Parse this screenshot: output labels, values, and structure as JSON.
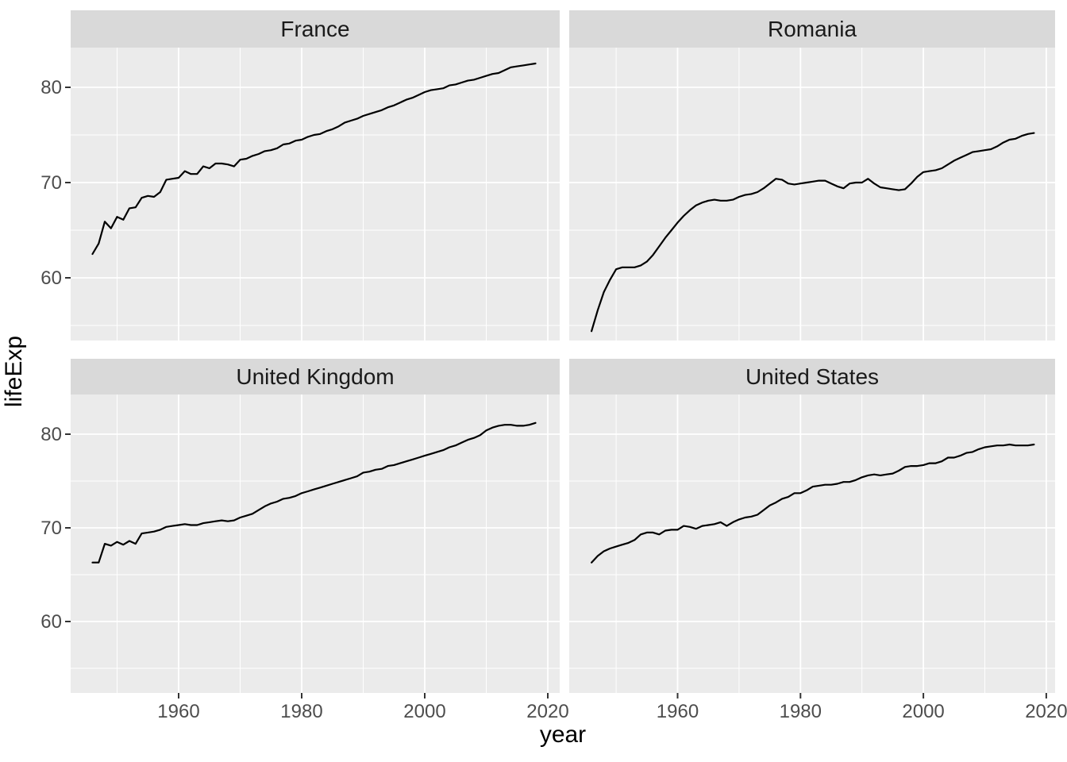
{
  "figure": {
    "x_axis_title": "year",
    "y_axis_title": "lifeExp"
  },
  "chart_data": {
    "type": "line",
    "title": "",
    "xlabel": "year",
    "ylabel": "lifeExp",
    "facet_layout": "2x2 grid, shared axes",
    "x_range": [
      1946,
      2018
    ],
    "x_axis_limits": [
      1942.4,
      2021.6
    ],
    "y_axis_limits": [
      53.0,
      84.2
    ],
    "grid": "white major and minor gridlines on grey panel",
    "legend": "none",
    "x_ticks": [
      1960,
      1980,
      2000,
      2020
    ],
    "x_tick_labels": [
      "1960",
      "1980",
      "2000",
      "2020"
    ],
    "x_minor_ticks": [
      1950,
      1970,
      1990,
      2010
    ],
    "y_ticks": [
      60,
      70,
      80
    ],
    "y_tick_labels": [
      "60",
      "70",
      "80"
    ],
    "y_minor_ticks": [
      55,
      65,
      75
    ],
    "colors": {
      "panel_background": "#ebebeb",
      "strip_background": "#d9d9d9",
      "gridline": "#ffffff",
      "line": "#000000",
      "tick_mark": "#333333",
      "tick_text": "#4d4d4d",
      "strip_text": "#1a1a1a",
      "figure_background": "#ffffff"
    },
    "year_start": 1946,
    "year_step": 1,
    "facets": [
      {
        "title": "France",
        "col": 0,
        "row": 0,
        "values": [
          62.5,
          63.6,
          65.9,
          65.2,
          66.4,
          66.1,
          67.3,
          67.4,
          68.4,
          68.6,
          68.5,
          69.0,
          70.3,
          70.4,
          70.5,
          71.2,
          70.9,
          70.9,
          71.7,
          71.5,
          72.0,
          72.0,
          71.9,
          71.7,
          72.4,
          72.5,
          72.8,
          73.0,
          73.3,
          73.4,
          73.6,
          74.0,
          74.1,
          74.4,
          74.5,
          74.8,
          75.0,
          75.1,
          75.4,
          75.6,
          75.9,
          76.3,
          76.5,
          76.7,
          77.0,
          77.2,
          77.4,
          77.6,
          77.9,
          78.1,
          78.4,
          78.7,
          78.9,
          79.2,
          79.5,
          79.7,
          79.8,
          79.9,
          80.2,
          80.3,
          80.5,
          80.7,
          80.8,
          81.0,
          81.2,
          81.4,
          81.5,
          81.8,
          82.1,
          82.2,
          82.3,
          82.4,
          82.5
        ]
      },
      {
        "title": "Romania",
        "col": 1,
        "row": 0,
        "values": [
          54.4,
          56.6,
          58.5,
          59.8,
          60.9,
          61.1,
          61.1,
          61.1,
          61.3,
          61.7,
          62.4,
          63.3,
          64.2,
          65.0,
          65.8,
          66.5,
          67.1,
          67.6,
          67.9,
          68.1,
          68.2,
          68.1,
          68.1,
          68.2,
          68.5,
          68.7,
          68.8,
          69.0,
          69.4,
          69.9,
          70.4,
          70.3,
          69.9,
          69.8,
          69.9,
          70.0,
          70.1,
          70.2,
          70.2,
          69.9,
          69.6,
          69.4,
          69.9,
          70.0,
          70.0,
          70.4,
          69.9,
          69.5,
          69.4,
          69.3,
          69.2,
          69.3,
          69.9,
          70.6,
          71.1,
          71.2,
          71.3,
          71.5,
          71.9,
          72.3,
          72.6,
          72.9,
          73.2,
          73.3,
          73.4,
          73.5,
          73.8,
          74.2,
          74.5,
          74.6,
          74.9,
          75.1,
          75.2
        ]
      },
      {
        "title": "United Kingdom",
        "col": 0,
        "row": 1,
        "values": [
          66.3,
          66.3,
          68.3,
          68.1,
          68.5,
          68.2,
          68.6,
          68.3,
          69.4,
          69.5,
          69.6,
          69.8,
          70.1,
          70.2,
          70.3,
          70.4,
          70.3,
          70.3,
          70.5,
          70.6,
          70.7,
          70.8,
          70.7,
          70.8,
          71.1,
          71.3,
          71.5,
          71.9,
          72.3,
          72.6,
          72.8,
          73.1,
          73.2,
          73.4,
          73.7,
          73.9,
          74.1,
          74.3,
          74.5,
          74.7,
          74.9,
          75.1,
          75.3,
          75.5,
          75.9,
          76.0,
          76.2,
          76.3,
          76.6,
          76.7,
          76.9,
          77.1,
          77.3,
          77.5,
          77.7,
          77.9,
          78.1,
          78.3,
          78.6,
          78.8,
          79.1,
          79.4,
          79.6,
          79.9,
          80.4,
          80.7,
          80.9,
          81.0,
          81.0,
          80.9,
          80.9,
          81.0,
          81.2
        ]
      },
      {
        "title": "United States",
        "col": 1,
        "row": 1,
        "values": [
          66.3,
          67.0,
          67.5,
          67.8,
          68.0,
          68.2,
          68.4,
          68.7,
          69.3,
          69.5,
          69.5,
          69.3,
          69.7,
          69.8,
          69.8,
          70.2,
          70.1,
          69.9,
          70.2,
          70.3,
          70.4,
          70.6,
          70.2,
          70.6,
          70.9,
          71.1,
          71.2,
          71.4,
          71.9,
          72.4,
          72.7,
          73.1,
          73.3,
          73.7,
          73.7,
          74.0,
          74.4,
          74.5,
          74.6,
          74.6,
          74.7,
          74.9,
          74.9,
          75.1,
          75.4,
          75.6,
          75.7,
          75.6,
          75.7,
          75.8,
          76.1,
          76.5,
          76.6,
          76.6,
          76.7,
          76.9,
          76.9,
          77.1,
          77.5,
          77.5,
          77.7,
          78.0,
          78.1,
          78.4,
          78.6,
          78.7,
          78.8,
          78.8,
          78.9,
          78.8,
          78.8,
          78.8,
          78.9
        ]
      }
    ]
  }
}
